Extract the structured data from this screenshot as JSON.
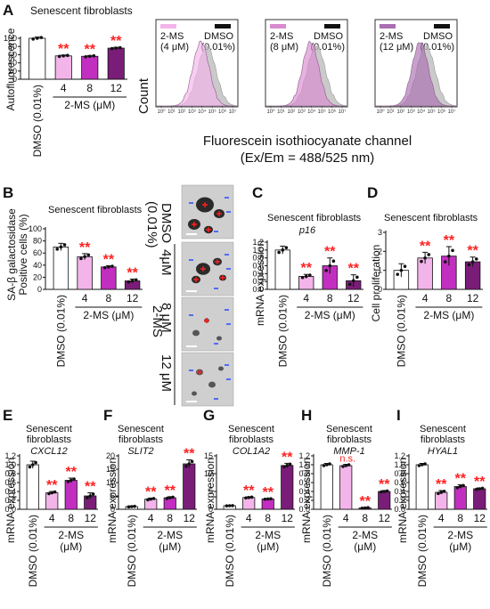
{
  "figure": {
    "panel_letters": [
      "A",
      "B",
      "C",
      "D",
      "E",
      "F",
      "G",
      "H",
      "I"
    ],
    "senescent_fibroblasts": "Senescent fibroblasts",
    "senescent": "Senescent",
    "fibroblasts": "fibroblasts",
    "treatment_label": "2-MS (μM)",
    "treatment_label_line1": "2-MS",
    "treatment_label_line2": "(μM)",
    "control_label": "DMSO (0.01%)",
    "doses": [
      "4",
      "8",
      "12"
    ],
    "significance": "**",
    "not_significant": "n.s."
  },
  "panel_a": {
    "ylabel": "Autofluorescence",
    "histogram": {
      "count_label": "Count",
      "xlabel_line1": "Fluorescein isothiocyanate channel",
      "xlabel_line2": "(Ex/Em = 488/525 nm)",
      "x_ticks": [
        "10⁰",
        "10¹",
        "10²",
        "10³",
        "10⁴",
        "10⁵",
        "10⁶",
        "10⁷"
      ],
      "legends": [
        {
          "treat": "2-MS",
          "conc": "(4 μM)",
          "color": "#f3b4ea",
          "ctrl": "DMSO",
          "ctrl_conc": "(0.01%)"
        },
        {
          "treat": "2-MS",
          "conc": "(8 μM)",
          "color": "#d98ad0",
          "ctrl": "DMSO",
          "ctrl_conc": "(0.01%)"
        },
        {
          "treat": "2-MS",
          "conc": "(12 μM)",
          "color": "#a96fb0",
          "ctrl": "DMSO",
          "ctrl_conc": "(0.01%)"
        }
      ]
    }
  },
  "panel_b": {
    "ylabel_line1": "SA-β galactosidase",
    "ylabel_line2": "Positive cells (%)",
    "micro": {
      "ctrl_line1": "DMSO",
      "ctrl_line2": "(0.01%)",
      "group_label": "2-MS",
      "doses": [
        "4μM",
        "8 μM",
        "12 μM"
      ]
    }
  },
  "panel_c": {
    "gene": "p16",
    "ylabel": "mRNA expression"
  },
  "panel_d": {
    "ylabel": "Cell proliferation"
  },
  "panel_e": {
    "gene": "CXCL12",
    "ylabel": "mRNA expression"
  },
  "panel_f": {
    "gene": "SLIT2",
    "ylabel": "mRNA expression"
  },
  "panel_g": {
    "gene": "COL1A2",
    "ylabel": "mRNA expression"
  },
  "panel_h": {
    "gene": "MMP-1",
    "ylabel": "mRNA expression"
  },
  "panel_i": {
    "gene": "HYAL1",
    "ylabel": "mRNA expression"
  },
  "colors": {
    "dmso": "#ffffff",
    "ms4": "#f3b4ea",
    "ms8": "#c22ec0",
    "ms12": "#7a1d78",
    "sig": "#ff2020"
  },
  "chart_data": [
    {
      "panel": "A",
      "type": "bar",
      "ylabel": "Autofluorescence",
      "ylim": [
        0,
        100
      ],
      "yticks": [
        0,
        20,
        40,
        60,
        80,
        100
      ],
      "categories": [
        "DMSO (0.01%)",
        "4",
        "8",
        "12"
      ],
      "values": [
        100,
        57,
        56,
        76
      ],
      "errors": [
        3,
        2,
        2,
        2
      ],
      "significant": [
        false,
        true,
        true,
        true
      ]
    },
    {
      "panel": "B",
      "type": "bar",
      "ylabel": "SA-β galactosidase Positive cells (%)",
      "ylim": [
        0,
        100
      ],
      "yticks": [
        0,
        20,
        40,
        60,
        80,
        100
      ],
      "categories": [
        "DMSO (0.01%)",
        "4",
        "8",
        "12"
      ],
      "values": [
        70,
        54,
        37,
        14
      ],
      "errors": [
        6,
        5,
        2,
        3
      ],
      "significant": [
        false,
        true,
        true,
        true
      ]
    },
    {
      "panel": "C",
      "type": "bar",
      "ylabel": "mRNA expression",
      "ylim": [
        0,
        1.2
      ],
      "yticks": [
        0,
        0.2,
        0.4,
        0.6,
        0.8,
        1.0,
        1.2
      ],
      "categories": [
        "DMSO (0.01%)",
        "4",
        "8",
        "12"
      ],
      "values": [
        1.0,
        0.33,
        0.6,
        0.22
      ],
      "errors": [
        0.1,
        0.05,
        0.2,
        0.15
      ],
      "significant": [
        false,
        true,
        true,
        true
      ]
    },
    {
      "panel": "D",
      "type": "bar",
      "ylabel": "Cell proliferation",
      "ylim": [
        0,
        3
      ],
      "yticks": [
        0,
        1,
        2,
        3
      ],
      "categories": [
        "DMSO (0.01%)",
        "4",
        "8",
        "12"
      ],
      "values": [
        1.0,
        1.65,
        1.75,
        1.45
      ],
      "errors": [
        0.35,
        0.3,
        0.5,
        0.25
      ],
      "significant": [
        false,
        true,
        true,
        true
      ]
    },
    {
      "panel": "E",
      "type": "bar",
      "gene": "CXCL12",
      "ylabel": "mRNA expression",
      "ylim": [
        0,
        1.2
      ],
      "yticks": [
        0,
        0.2,
        0.4,
        0.6,
        0.8,
        1.0,
        1.2
      ],
      "categories": [
        "DMSO (0.01%)",
        "4",
        "8",
        "12"
      ],
      "values": [
        1.0,
        0.37,
        0.65,
        0.3
      ],
      "errors": [
        0.08,
        0.03,
        0.05,
        0.07
      ],
      "significant": [
        false,
        true,
        true,
        true
      ]
    },
    {
      "panel": "F",
      "type": "bar",
      "gene": "SLIT2",
      "ylabel": "mRNA expression",
      "ylim": [
        0,
        20
      ],
      "yticks": [
        0,
        5,
        10,
        15,
        20
      ],
      "categories": [
        "DMSO (0.01%)",
        "4",
        "8",
        "12"
      ],
      "values": [
        1.0,
        3.8,
        4.3,
        17.0
      ],
      "errors": [
        0.2,
        0.4,
        0.4,
        1.5
      ],
      "significant": [
        false,
        true,
        true,
        true
      ]
    },
    {
      "panel": "G",
      "type": "bar",
      "gene": "COL1A2",
      "ylabel": "mRNA expression",
      "ylim": [
        0,
        15
      ],
      "yticks": [
        0,
        5,
        10,
        15
      ],
      "categories": [
        "DMSO (0.01%)",
        "4",
        "8",
        "12"
      ],
      "values": [
        1.0,
        3.3,
        2.9,
        12.3
      ],
      "errors": [
        0.05,
        0.2,
        0.1,
        0.6
      ],
      "significant": [
        false,
        true,
        true,
        true
      ]
    },
    {
      "panel": "H",
      "type": "bar",
      "gene": "MMP-1",
      "ylabel": "mRNA expression",
      "ylim": [
        0,
        1.2
      ],
      "yticks": [
        0,
        0.2,
        0.4,
        0.6,
        0.8,
        1.0,
        1.2
      ],
      "categories": [
        "DMSO (0.01%)",
        "4",
        "8",
        "12"
      ],
      "values": [
        1.0,
        0.98,
        0.03,
        0.4
      ],
      "errors": [
        0.03,
        0.03,
        0.01,
        0.02
      ],
      "significant": [
        false,
        false,
        true,
        true
      ]
    },
    {
      "panel": "I",
      "type": "bar",
      "gene": "HYAL1",
      "ylabel": "mRNA expression",
      "ylim": [
        0,
        1.2
      ],
      "yticks": [
        0,
        0.2,
        0.4,
        0.6,
        0.8,
        1.0,
        1.2
      ],
      "categories": [
        "DMSO (0.01%)",
        "4",
        "8",
        "12"
      ],
      "values": [
        1.0,
        0.38,
        0.51,
        0.46
      ],
      "errors": [
        0.03,
        0.04,
        0.04,
        0.02
      ],
      "significant": [
        false,
        true,
        true,
        true
      ]
    }
  ]
}
